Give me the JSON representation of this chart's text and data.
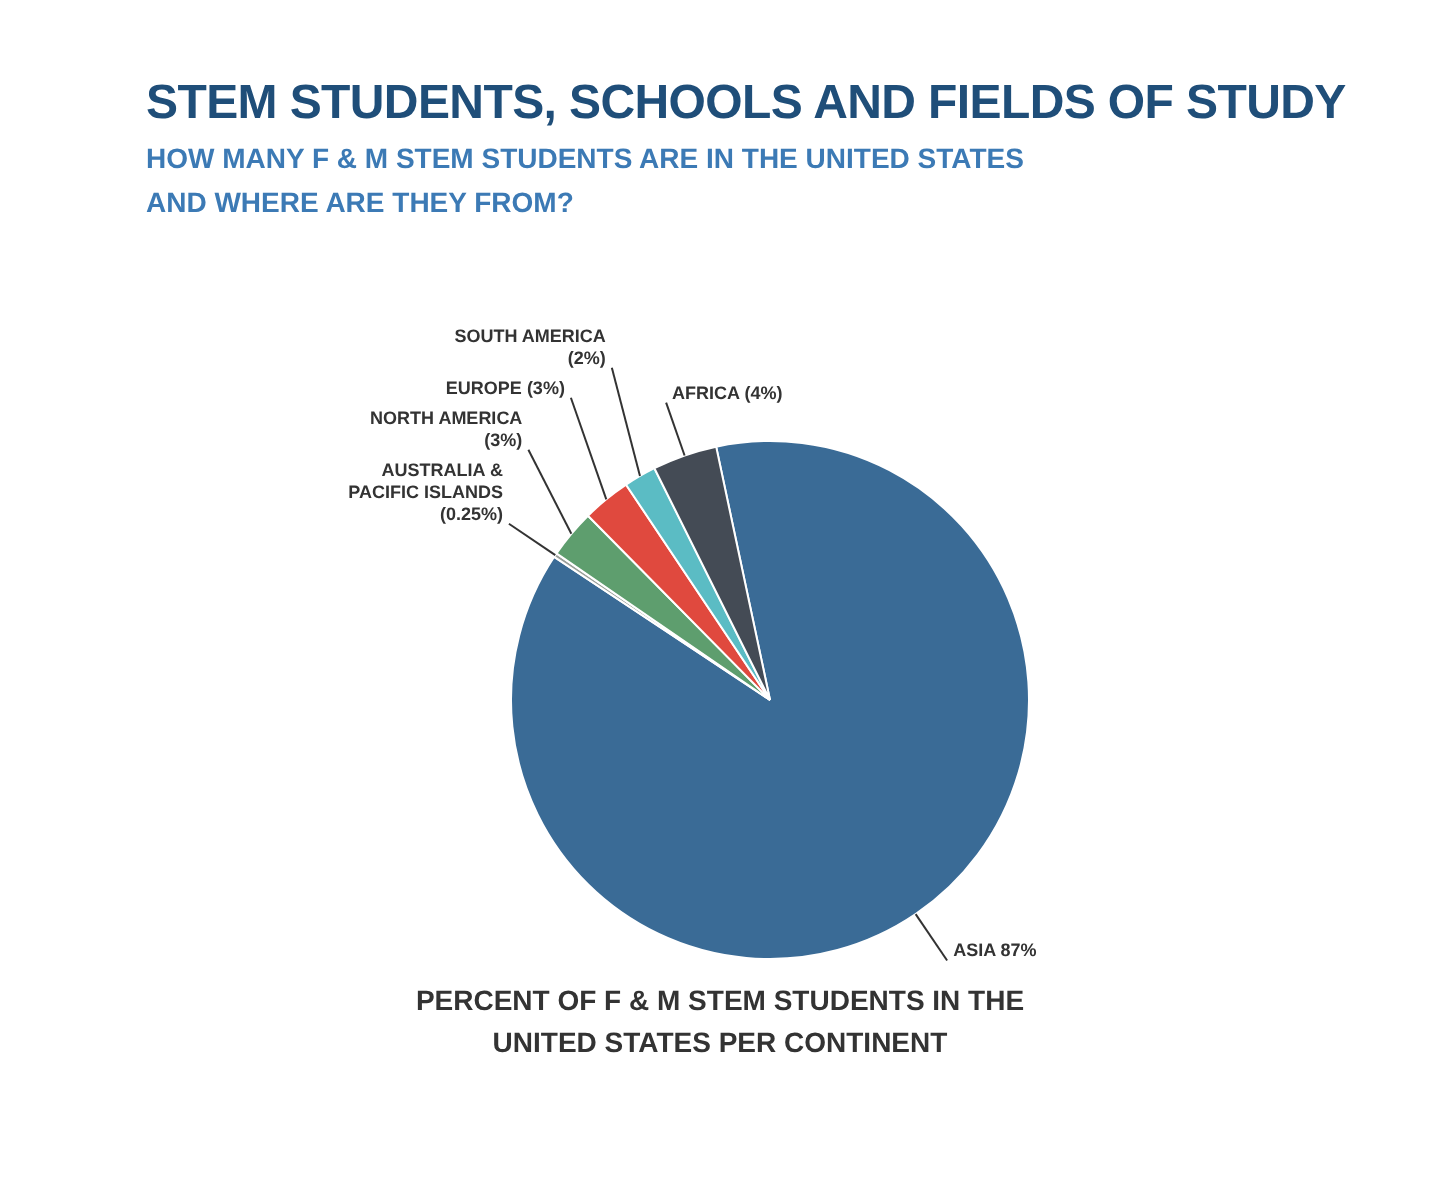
{
  "chart_data": {
    "type": "pie",
    "title": "STEM STUDENTS, SCHOOLS AND FIELDS OF STUDY",
    "subtitle": "HOW MANY F & M STEM STUDENTS ARE IN THE UNITED STATES AND WHERE ARE THEY FROM?",
    "categories": [
      "ASIA 87%",
      "AUSTRALIA & PACIFIC ISLANDS (0.25%)",
      "NORTH AMERICA (3%)",
      "EUROPE (3%)",
      "SOUTH AMERICA (2%)",
      "AFRICA (4%)"
    ],
    "values": [
      87,
      0.25,
      3,
      3,
      2,
      4
    ],
    "colors": [
      "#3a6b96",
      "#9a9f9a",
      "#5e9e6e",
      "#e0493e",
      "#5bbcc4",
      "#444b55"
    ],
    "annotations": [
      "PERCENT OF F & M STEM STUDENTS IN THE UNITED STATES PER CONTINENT"
    ]
  }
}
